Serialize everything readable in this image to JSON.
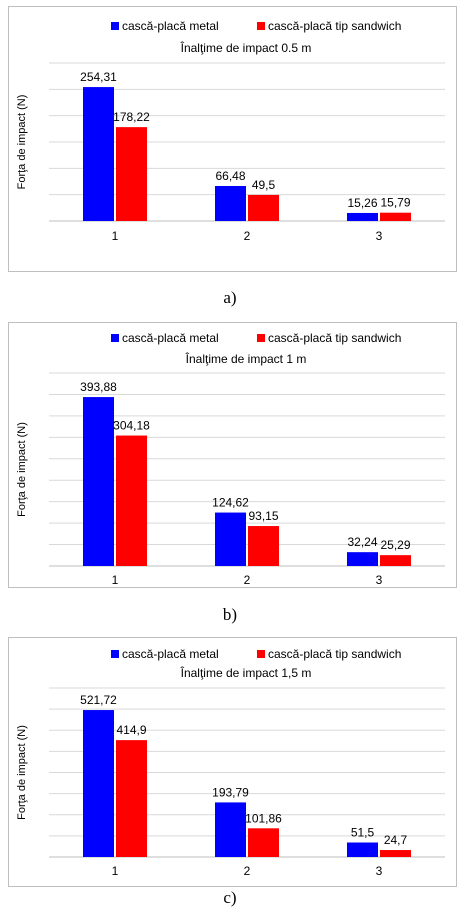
{
  "legend": {
    "series_a_label": "cască-placă metal",
    "series_b_label": "cască-placă tip sandwich",
    "series_a_color": "#0000ff",
    "series_b_color": "#ff0000"
  },
  "chart_data": [
    {
      "type": "bar",
      "title": "Înalţime de impact 0.5 m",
      "ylabel": "Forţa de impact (N)",
      "xlabel": "",
      "categories": [
        "1",
        "2",
        "3"
      ],
      "series": [
        {
          "name": "cască-placă metal",
          "values": [
            254.31,
            66.48,
            15.26
          ],
          "labels": [
            "254,31",
            "66,48",
            "15,26"
          ]
        },
        {
          "name": "cască-placă tip sandwich",
          "values": [
            178.22,
            49.5,
            15.79
          ],
          "labels": [
            "178,22",
            "49,5",
            "15,79"
          ]
        }
      ],
      "ylim": [
        0,
        300
      ],
      "grid": true,
      "legend_position": "top",
      "caption": "a)"
    },
    {
      "type": "bar",
      "title": "Înalţime de impact 1 m",
      "ylabel": "Forţa de impact (N)",
      "xlabel": "",
      "categories": [
        "1",
        "2",
        "3"
      ],
      "series": [
        {
          "name": "cască-placă metal",
          "values": [
            393.88,
            124.62,
            32.24
          ],
          "labels": [
            "393,88",
            "124,62",
            "32,24"
          ]
        },
        {
          "name": "cască-placă tip sandwich",
          "values": [
            304.18,
            93.15,
            25.29
          ],
          "labels": [
            "304,18",
            "93,15",
            "25,29"
          ]
        }
      ],
      "ylim": [
        0,
        450
      ],
      "grid": true,
      "legend_position": "top",
      "caption": "b)"
    },
    {
      "type": "bar",
      "title": "Înalţime de impact 1,5 m",
      "ylabel": "Forţa de impact (N)",
      "xlabel": "",
      "categories": [
        "1",
        "2",
        "3"
      ],
      "series": [
        {
          "name": "cască-placă metal",
          "values": [
            521.72,
            193.79,
            51.5
          ],
          "labels": [
            "521,72",
            "193,79",
            "51,5"
          ]
        },
        {
          "name": "cască-placă tip sandwich",
          "values": [
            414.9,
            101.86,
            24.7
          ],
          "labels": [
            "414,9",
            "101,86",
            "24,7"
          ]
        }
      ],
      "ylim": [
        0,
        600
      ],
      "grid": true,
      "legend_position": "top",
      "caption": "c)"
    }
  ]
}
